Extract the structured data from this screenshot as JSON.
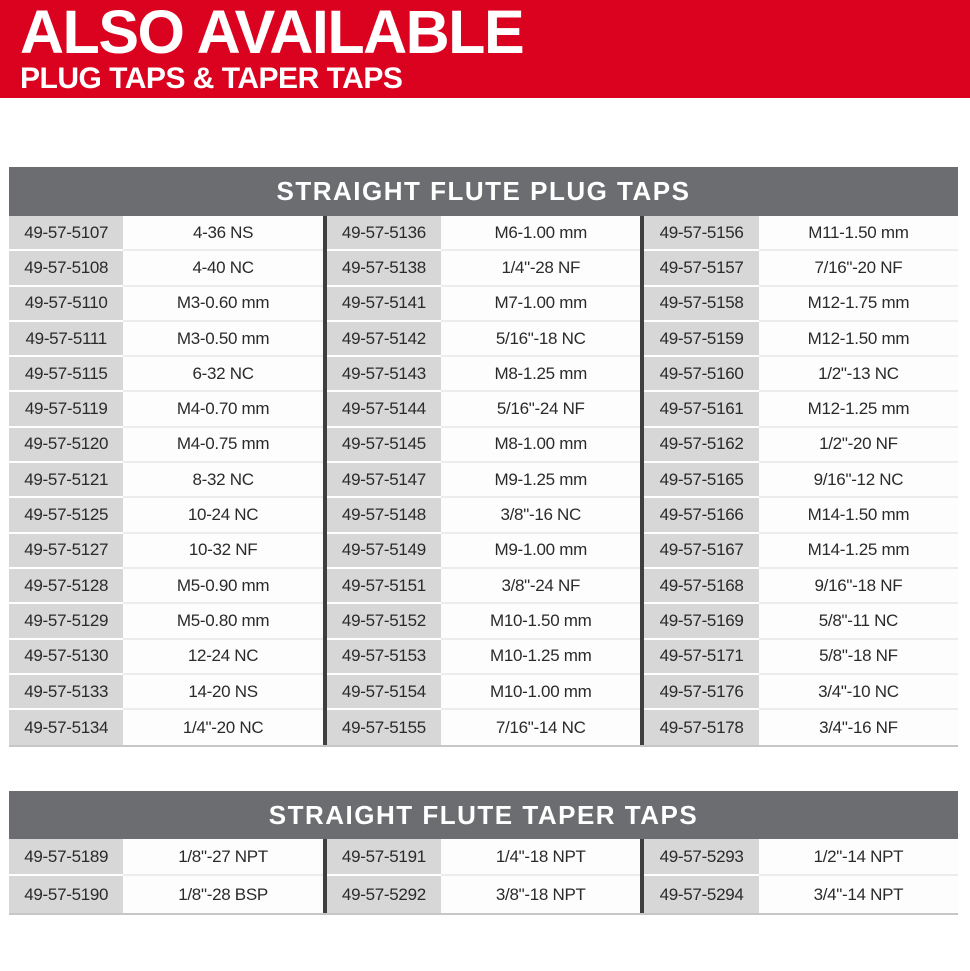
{
  "banner": {
    "title": "ALSO AVAILABLE",
    "subtitle": "PLUG TAPS & TAPER TAPS"
  },
  "colors": {
    "banner_bg": "#db0220",
    "banner_text": "#ffffff",
    "header_bg": "#6b6d70",
    "header_text": "#ffffff",
    "part_cell_bg": "#d7d7d7",
    "size_cell_bg": "#fdfdfd",
    "group_divider": "#3f3f41",
    "cell_text": "#2a2a2a",
    "row_sep_on_gray": "#ffffff",
    "row_sep_on_white": "#ececec",
    "table_bottom_border": "#c6c6c6"
  },
  "plug_table": {
    "title": "STRAIGHT FLUTE PLUG TAPS",
    "rows": [
      [
        "49-57-5107",
        "4-36 NS",
        "49-57-5136",
        "M6-1.00 mm",
        "49-57-5156",
        "M11-1.50 mm"
      ],
      [
        "49-57-5108",
        "4-40 NC",
        "49-57-5138",
        "1/4\"-28 NF",
        "49-57-5157",
        "7/16\"-20 NF"
      ],
      [
        "49-57-5110",
        "M3-0.60 mm",
        "49-57-5141",
        "M7-1.00 mm",
        "49-57-5158",
        "M12-1.75 mm"
      ],
      [
        "49-57-5111",
        "M3-0.50 mm",
        "49-57-5142",
        "5/16\"-18 NC",
        "49-57-5159",
        "M12-1.50 mm"
      ],
      [
        "49-57-5115",
        "6-32 NC",
        "49-57-5143",
        "M8-1.25 mm",
        "49-57-5160",
        "1/2\"-13 NC"
      ],
      [
        "49-57-5119",
        "M4-0.70 mm",
        "49-57-5144",
        "5/16\"-24 NF",
        "49-57-5161",
        "M12-1.25 mm"
      ],
      [
        "49-57-5120",
        "M4-0.75 mm",
        "49-57-5145",
        "M8-1.00 mm",
        "49-57-5162",
        "1/2\"-20 NF"
      ],
      [
        "49-57-5121",
        "8-32 NC",
        "49-57-5147",
        "M9-1.25 mm",
        "49-57-5165",
        "9/16\"-12 NC"
      ],
      [
        "49-57-5125",
        "10-24 NC",
        "49-57-5148",
        "3/8\"-16 NC",
        "49-57-5166",
        "M14-1.50 mm"
      ],
      [
        "49-57-5127",
        "10-32 NF",
        "49-57-5149",
        "M9-1.00 mm",
        "49-57-5167",
        "M14-1.25 mm"
      ],
      [
        "49-57-5128",
        "M5-0.90 mm",
        "49-57-5151",
        "3/8\"-24 NF",
        "49-57-5168",
        "9/16\"-18 NF"
      ],
      [
        "49-57-5129",
        "M5-0.80 mm",
        "49-57-5152",
        "M10-1.50 mm",
        "49-57-5169",
        "5/8\"-11 NC"
      ],
      [
        "49-57-5130",
        "12-24 NC",
        "49-57-5153",
        "M10-1.25 mm",
        "49-57-5171",
        "5/8\"-18 NF"
      ],
      [
        "49-57-5133",
        "14-20 NS",
        "49-57-5154",
        "M10-1.00 mm",
        "49-57-5176",
        "3/4\"-10 NC"
      ],
      [
        "49-57-5134",
        "1/4\"-20 NC",
        "49-57-5155",
        "7/16\"-14 NC",
        "49-57-5178",
        "3/4\"-16 NF"
      ]
    ]
  },
  "taper_table": {
    "title": "STRAIGHT FLUTE TAPER TAPS",
    "rows": [
      [
        "49-57-5189",
        "1/8\"-27 NPT",
        "49-57-5191",
        "1/4\"-18 NPT",
        "49-57-5293",
        "1/2\"-14 NPT"
      ],
      [
        "49-57-5190",
        "1/8\"-28 BSP",
        "49-57-5292",
        "3/8\"-18 NPT",
        "49-57-5294",
        "3/4\"-14 NPT"
      ]
    ]
  }
}
